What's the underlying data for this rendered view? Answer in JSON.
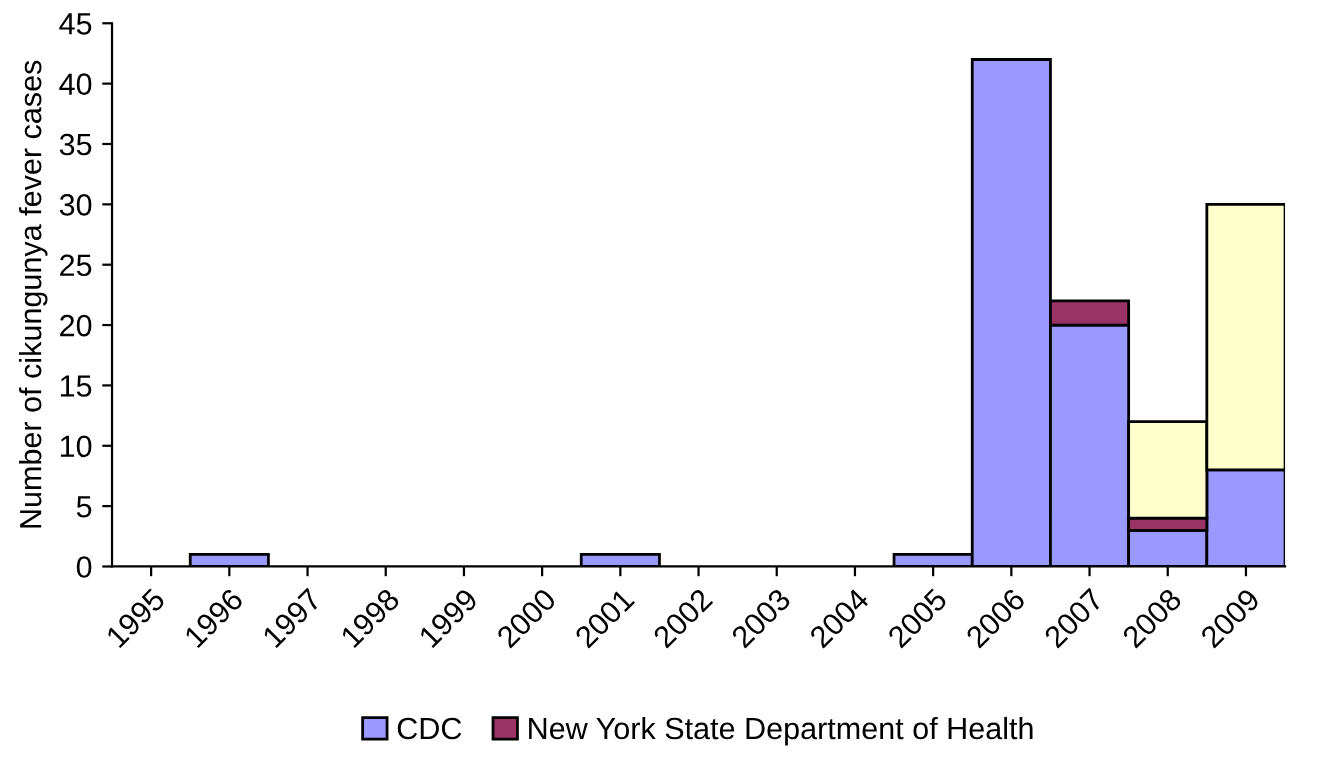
{
  "chart_data": {
    "type": "bar",
    "stacked": true,
    "ylabel": "Number of cikungunya fever cases",
    "categories": [
      "1995",
      "1996",
      "1997",
      "1998",
      "1999",
      "2000",
      "2001",
      "2002",
      "2003",
      "2004",
      "2005",
      "2006",
      "2007",
      "2008",
      "2009"
    ],
    "series": [
      {
        "name": "CDC",
        "color": "#9999ff",
        "values": [
          0,
          1,
          0,
          0,
          0,
          0,
          1,
          0,
          0,
          0,
          1,
          42,
          20,
          3,
          8
        ]
      },
      {
        "name": "New York State Department of Health",
        "color": "#993366",
        "values": [
          0,
          0,
          0,
          0,
          0,
          0,
          0,
          0,
          0,
          0,
          0,
          0,
          2,
          1,
          0
        ]
      },
      {
        "color": "#ffffcc",
        "values": [
          0,
          0,
          0,
          0,
          0,
          0,
          0,
          0,
          0,
          0,
          0,
          0,
          0,
          8,
          22
        ]
      }
    ],
    "ylim": [
      0,
      45
    ],
    "yticks": [
      0,
      5,
      10,
      15,
      20,
      25,
      30,
      35,
      40,
      45
    ],
    "grid": false,
    "legend": "bottom"
  }
}
